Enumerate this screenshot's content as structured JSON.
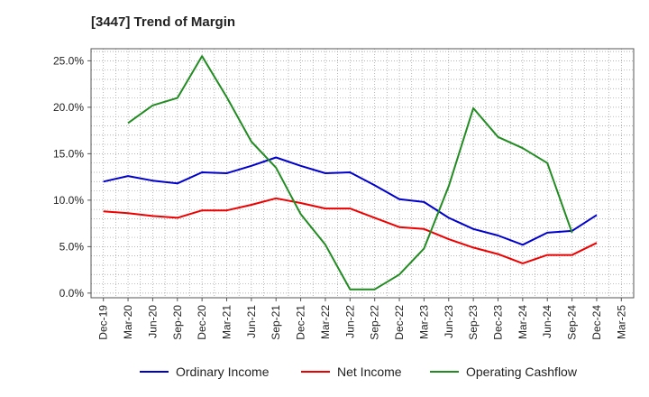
{
  "title": "[3447]  Trend of Margin",
  "chart_data": {
    "type": "line",
    "title": "[3447]  Trend of Margin",
    "xlabel": "",
    "ylabel": "",
    "x": [
      "Dec-19",
      "Mar-20",
      "Jun-20",
      "Sep-20",
      "Dec-20",
      "Mar-21",
      "Jun-21",
      "Sep-21",
      "Dec-21",
      "Mar-22",
      "Jun-22",
      "Sep-22",
      "Dec-22",
      "Mar-23",
      "Jun-23",
      "Sep-23",
      "Dec-23",
      "Mar-24",
      "Jun-24",
      "Sep-24",
      "Dec-24",
      "Mar-25"
    ],
    "ylim": [
      -0.5,
      26.3
    ],
    "yticks": [
      0,
      5,
      10,
      15,
      20,
      25
    ],
    "ytick_labels": [
      "0.0%",
      "5.0%",
      "10.0%",
      "15.0%",
      "20.0%",
      "25.0%"
    ],
    "grid": true,
    "legend_position": "bottom",
    "series": [
      {
        "name": "Ordinary Income",
        "color": "#0000cc",
        "values": [
          12.0,
          12.6,
          12.1,
          11.8,
          13.0,
          12.9,
          13.7,
          14.6,
          13.7,
          12.9,
          13.0,
          11.6,
          10.1,
          9.8,
          8.1,
          6.9,
          6.2,
          5.2,
          6.5,
          6.7,
          8.4,
          null
        ]
      },
      {
        "name": "Net Income",
        "color": "#ee0000",
        "values": [
          8.8,
          8.6,
          8.3,
          8.1,
          8.9,
          8.9,
          9.5,
          10.2,
          9.7,
          9.1,
          9.1,
          8.1,
          7.1,
          6.9,
          5.8,
          4.9,
          4.2,
          3.2,
          4.1,
          4.1,
          5.4,
          null
        ]
      },
      {
        "name": "Operating Cashflow",
        "color": "#228b22",
        "values": [
          null,
          18.3,
          20.2,
          21.0,
          25.5,
          21.1,
          16.3,
          13.5,
          8.5,
          5.2,
          0.4,
          0.4,
          2.0,
          4.8,
          11.5,
          19.9,
          16.8,
          15.6,
          14.0,
          6.5,
          null,
          null
        ]
      }
    ]
  }
}
